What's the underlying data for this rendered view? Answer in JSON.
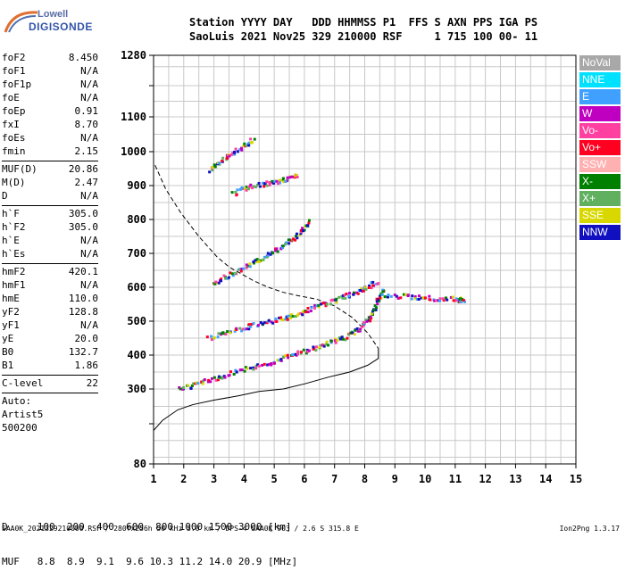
{
  "logo": {
    "line1": "Lowell",
    "line2": "DIGISONDE"
  },
  "header": {
    "row1": "Station YYYY DAY   DDD HHMMSS P1  FFS S AXN PPS IGA PS",
    "row2": "SaoLuis 2021 Nov25 329 210000 RSF     1 715 100 00- 11"
  },
  "params": [
    {
      "k": "foF2",
      "v": "8.450"
    },
    {
      "k": "foF1",
      "v": "N/A"
    },
    {
      "k": "foF1p",
      "v": "N/A"
    },
    {
      "k": "foE",
      "v": "N/A"
    },
    {
      "k": "foEp",
      "v": "0.91"
    },
    {
      "k": "fxI",
      "v": "8.70"
    },
    {
      "k": "foEs",
      "v": "N/A"
    },
    {
      "k": "fmin",
      "v": "2.15"
    },
    {
      "sep": true
    },
    {
      "k": "MUF(D)",
      "v": "20.86"
    },
    {
      "k": "M(D)",
      "v": "2.47"
    },
    {
      "k": "D",
      "v": "N/A"
    },
    {
      "sep": true
    },
    {
      "k": "h`F",
      "v": "305.0"
    },
    {
      "k": "h`F2",
      "v": "305.0"
    },
    {
      "k": "h`E",
      "v": "N/A"
    },
    {
      "k": "h`Es",
      "v": "N/A"
    },
    {
      "sep": true
    },
    {
      "k": "hmF2",
      "v": "420.1"
    },
    {
      "k": "hmF1",
      "v": "N/A"
    },
    {
      "k": "hmE",
      "v": "110.0"
    },
    {
      "k": "yF2",
      "v": "128.8"
    },
    {
      "k": "yF1",
      "v": "N/A"
    },
    {
      "k": "yE",
      "v": "20.0"
    },
    {
      "k": "B0",
      "v": "132.7"
    },
    {
      "k": "B1",
      "v": "1.86"
    },
    {
      "sep": true
    },
    {
      "k": "C-level",
      "v": "22"
    },
    {
      "sep": true
    },
    {
      "k": "Auto:",
      "v": ""
    },
    {
      "k": "Artist5",
      "v": ""
    },
    {
      "k": "500200",
      "v": ""
    }
  ],
  "legend": [
    {
      "label": "NoVal",
      "color": "#a8a8a8"
    },
    {
      "label": "NNE",
      "color": "#00e0ff"
    },
    {
      "label": "E",
      "color": "#40a0ff"
    },
    {
      "label": "W",
      "color": "#c000c0"
    },
    {
      "label": "Vo-",
      "color": "#ff40a0"
    },
    {
      "label": "Vo+",
      "color": "#ff0020"
    },
    {
      "label": "SSW",
      "color": "#ffb0b0"
    },
    {
      "label": "X-",
      "color": "#008000"
    },
    {
      "label": "X+",
      "color": "#60b060"
    },
    {
      "label": "SSE",
      "color": "#d8d800"
    },
    {
      "label": "NNW",
      "color": "#1010c0"
    }
  ],
  "chart_data": {
    "type": "scatter",
    "xlim": [
      1,
      15
    ],
    "ylim": [
      80,
      1280
    ],
    "x_ticks": [
      1,
      2,
      3,
      4,
      5,
      6,
      7,
      8,
      9,
      10,
      11,
      12,
      13,
      14,
      15
    ],
    "y_ticks": [
      80,
      200,
      300,
      400,
      500,
      600,
      700,
      800,
      900,
      1000,
      1100,
      1200,
      1280
    ],
    "y_tick_labels": [
      "80",
      "",
      "300",
      "400",
      "500",
      "600",
      "700",
      "800",
      "900",
      "1000",
      "1100",
      "",
      "1280"
    ],
    "grid": true,
    "y_scale_note": "y labels drawn at uneven spacing as in original",
    "series": [
      {
        "style": "solid",
        "x": [
          1.0,
          1.3,
          1.8,
          2.3,
          3.0,
          3.8,
          4.5,
          5.3,
          6.0,
          6.8,
          7.5,
          8.1,
          8.45,
          8.45
        ],
        "y": [
          180,
          210,
          240,
          255,
          268,
          280,
          293,
          300,
          315,
          335,
          350,
          370,
          390,
          420
        ]
      },
      {
        "style": "dashed",
        "x": [
          1.05,
          1.4,
          1.9,
          2.5,
          3.1,
          3.5,
          3.9,
          4.3,
          4.8,
          5.3,
          5.8,
          6.4,
          7.0,
          7.6,
          8.1,
          8.45
        ],
        "y": [
          960,
          890,
          820,
          750,
          690,
          660,
          640,
          620,
          600,
          585,
          575,
          565,
          545,
          510,
          465,
          420
        ]
      },
      {
        "style": "trace-o",
        "x": [
          1.8,
          2.5,
          3.2,
          4.0,
          4.8,
          5.5,
          6.2,
          6.8,
          7.3,
          7.8,
          8.1,
          8.4,
          8.6
        ],
        "y": [
          303,
          320,
          340,
          360,
          380,
          400,
          420,
          440,
          455,
          480,
          510,
          560,
          600
        ]
      },
      {
        "style": "trace-2",
        "x": [
          2.8,
          3.5,
          4.2,
          5.0,
          5.6,
          6.2,
          6.8,
          7.4,
          8.0,
          8.4
        ],
        "y": [
          455,
          470,
          490,
          505,
          520,
          540,
          560,
          580,
          600,
          620
        ]
      },
      {
        "style": "trace-3",
        "x": [
          2.9,
          3.5,
          4.2,
          4.8,
          5.3,
          5.8,
          6.2
        ],
        "y": [
          610,
          640,
          670,
          700,
          730,
          760,
          800
        ]
      },
      {
        "style": "trace-4",
        "x": [
          3.6,
          4.2,
          4.8,
          5.3,
          5.8
        ],
        "y": [
          880,
          900,
          910,
          920,
          935
        ]
      },
      {
        "style": "trace-5",
        "x": [
          2.8,
          3.3,
          3.8,
          4.3
        ],
        "y": [
          950,
          980,
          1010,
          1040
        ]
      },
      {
        "style": "trace-x",
        "x": [
          8.6,
          9.5,
          10.2,
          11.0,
          11.3
        ],
        "y": [
          580,
          575,
          570,
          568,
          565
        ]
      }
    ]
  },
  "bottom": {
    "row1": "D     100  200  400  600  800 1000 1500 3000 [km]",
    "row2": "MUF   8.8  8.9  9.1  9.6 10.3 11.2 14.0 20.9 [MHz]"
  },
  "footer": "SAA0K_2021329210000.RSF / 280fx256h 50 kHz 5.0 km / DPS-4 SAA0K 903 / 2.6 S 315.8 E",
  "footer_right": "Ion2Png 1.3.17"
}
